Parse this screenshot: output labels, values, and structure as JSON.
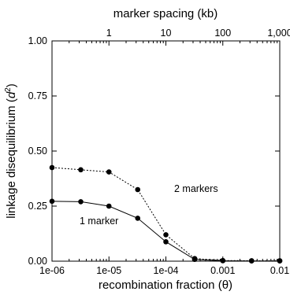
{
  "chart_data": {
    "type": "line",
    "xscale": "log",
    "xlim": [
      1e-06,
      0.01
    ],
    "ylim": [
      0,
      1
    ],
    "xlabel": "recombination fraction (θ)",
    "ylabel_main": "linkage disequilibrium (",
    "ylabel_var": "d",
    "ylabel_sup": "2",
    "ylabel_end": ")",
    "top_xlabel": "marker spacing (kb)",
    "x_ticks": [
      {
        "value": 1e-06,
        "label": "1e-06"
      },
      {
        "value": 1e-05,
        "label": "1e-05"
      },
      {
        "value": 0.0001,
        "label": "1e-04"
      },
      {
        "value": 0.001,
        "label": "0.001"
      },
      {
        "value": 0.01,
        "label": "0.01"
      }
    ],
    "top_ticks": [
      {
        "value": 1e-05,
        "label": "1"
      },
      {
        "value": 0.0001,
        "label": "10"
      },
      {
        "value": 0.001,
        "label": "100"
      },
      {
        "value": 0.01,
        "label": "1,000"
      }
    ],
    "y_ticks": [
      {
        "value": 0,
        "label": "0.00"
      },
      {
        "value": 0.25,
        "label": "0.25"
      },
      {
        "value": 0.5,
        "label": "0.50"
      },
      {
        "value": 0.75,
        "label": "0.75"
      },
      {
        "value": 1.0,
        "label": "1.00"
      }
    ],
    "grid": false,
    "series": [
      {
        "name": "2 markers",
        "style": "dotted",
        "x": [
          1e-06,
          3.2e-06,
          1e-05,
          3.2e-05,
          0.0001,
          0.00032,
          0.001,
          0.0032,
          0.01
        ],
        "y": [
          0.425,
          0.415,
          0.405,
          0.325,
          0.12,
          0.012,
          0.003,
          0.002,
          0.002
        ]
      },
      {
        "name": "1 marker",
        "style": "solid",
        "x": [
          1e-06,
          3.2e-06,
          1e-05,
          3.2e-05,
          0.0001,
          0.00032,
          0.001,
          0.0032,
          0.01
        ],
        "y": [
          0.272,
          0.27,
          0.25,
          0.195,
          0.088,
          0.008,
          0.002,
          0.001,
          0.001
        ]
      }
    ]
  }
}
